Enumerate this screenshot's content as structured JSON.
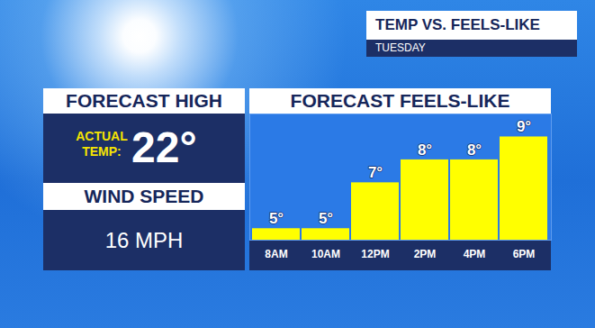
{
  "chart_data": {
    "type": "bar",
    "title": "TEMP VS. FEELS-LIKE",
    "subtitle": "TUESDAY",
    "x_label": "FORECAST FEELS-LIKE",
    "categories": [
      "8AM",
      "10AM",
      "12PM",
      "2PM",
      "4PM",
      "6PM"
    ],
    "values": [
      5,
      5,
      7,
      8,
      8,
      9
    ],
    "value_labels": [
      "5°",
      "5°",
      "7°",
      "8°",
      "8°",
      "9°"
    ],
    "color": "#ffff00",
    "ylim": [
      4.5,
      10
    ],
    "data_labels": true,
    "tick_labels": "x",
    "grid": false,
    "annotations": [
      {
        "text": "FORECAST HIGH"
      },
      {
        "text": "ACTUAL TEMP:"
      },
      {
        "text": "22°"
      },
      {
        "text": "WIND SPEED"
      },
      {
        "text": "16 MPH"
      }
    ]
  }
}
